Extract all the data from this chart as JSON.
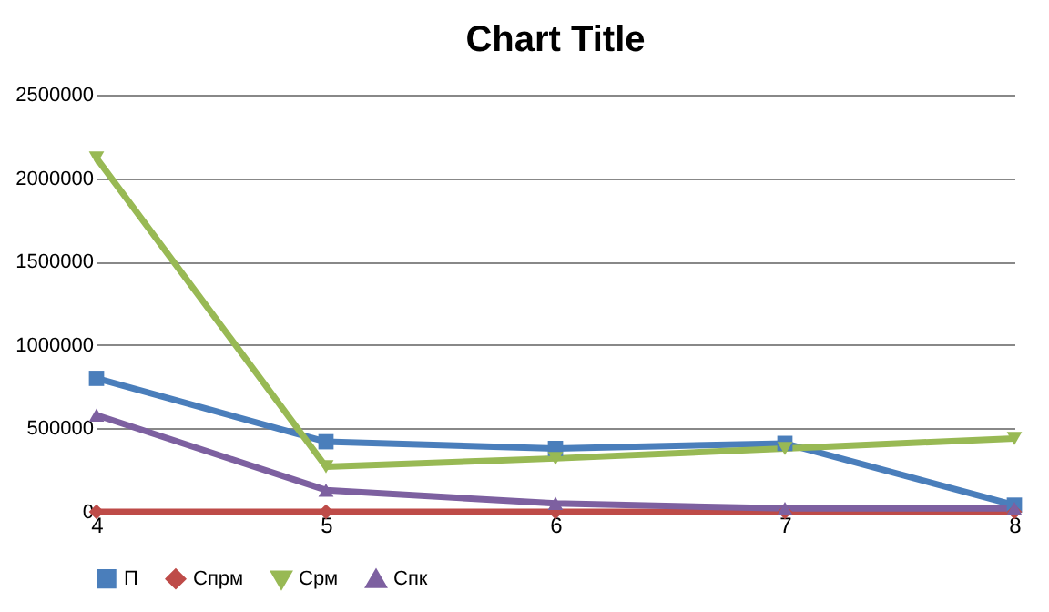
{
  "chart_data": {
    "type": "line",
    "title": "Chart Title",
    "x": [
      4,
      5,
      6,
      7,
      8
    ],
    "xlim": [
      4,
      8
    ],
    "xticks": [
      4,
      5,
      6,
      7,
      8
    ],
    "ylim": [
      0,
      2500000
    ],
    "yticks": [
      0,
      500000,
      1000000,
      1500000,
      2000000,
      2500000
    ],
    "grid": "y",
    "legend": "bottom",
    "line_style": "solid",
    "series": [
      {
        "name": "П",
        "color": "#4a7ebb",
        "marker": "square",
        "values": [
          800000,
          420000,
          380000,
          410000,
          40000
        ]
      },
      {
        "name": "Спрм",
        "color": "#be4b48",
        "marker": "diamond",
        "values": [
          0,
          0,
          0,
          0,
          0
        ]
      },
      {
        "name": "Срм",
        "color": "#98b954",
        "marker": "triangle-down",
        "values": [
          2120000,
          270000,
          320000,
          380000,
          440000
        ]
      },
      {
        "name": "Спк",
        "color": "#7d60a0",
        "marker": "triangle-up",
        "values": [
          580000,
          130000,
          50000,
          20000,
          20000
        ]
      }
    ]
  }
}
